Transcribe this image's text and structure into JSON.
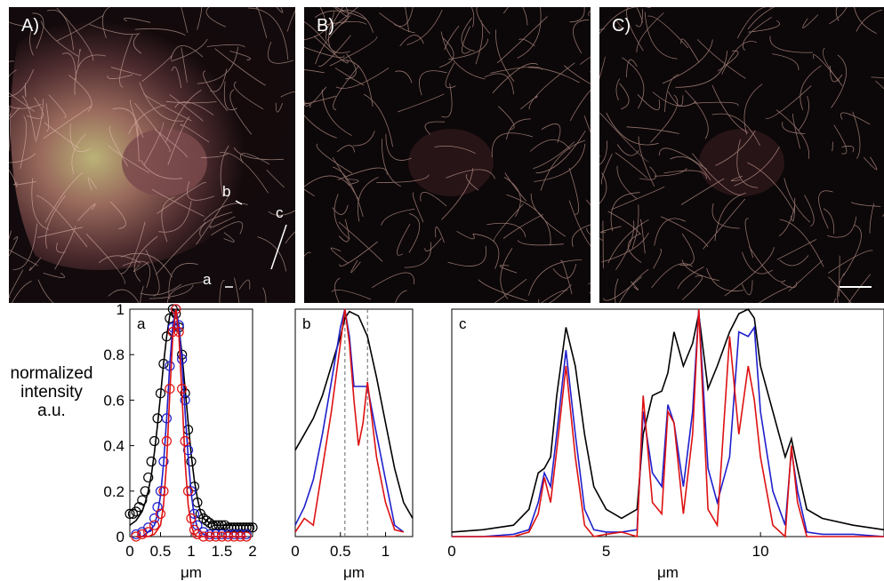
{
  "panels": [
    {
      "label": "A)"
    },
    {
      "label": "B)"
    },
    {
      "label": "C)"
    }
  ],
  "image_markers": [
    "a",
    "b",
    "c"
  ],
  "y_axis_label": [
    "normalized",
    "intensity",
    "a.u."
  ],
  "colors": {
    "black": "#000000",
    "blue": "#1f1fcc",
    "red": "#dd1111",
    "microtubule": "#e8b8ad"
  },
  "chart_data": [
    {
      "type": "scatter",
      "panel_label": "a",
      "xlabel": "μm",
      "xlim": [
        0,
        2
      ],
      "ylim": [
        0,
        1
      ],
      "xticks": [
        "0",
        "0.5",
        "1",
        "1.5",
        "2"
      ],
      "yticks": [
        "0",
        "0.2",
        "0.4",
        "0.6",
        "0.8",
        "1"
      ],
      "series": [
        {
          "color": "black",
          "x": [
            0,
            0.05,
            0.1,
            0.15,
            0.2,
            0.25,
            0.3,
            0.35,
            0.4,
            0.45,
            0.5,
            0.55,
            0.6,
            0.65,
            0.7,
            0.75,
            0.8,
            0.85,
            0.9,
            0.95,
            1.0,
            1.05,
            1.1,
            1.15,
            1.2,
            1.25,
            1.3,
            1.35,
            1.4,
            1.45,
            1.5,
            1.55,
            1.6,
            1.65,
            1.7,
            1.75,
            1.8,
            1.85,
            1.9,
            1.95,
            2.0
          ],
          "y": [
            0.1,
            0.1,
            0.11,
            0.13,
            0.16,
            0.2,
            0.26,
            0.33,
            0.42,
            0.52,
            0.63,
            0.76,
            0.88,
            0.96,
            1.0,
            0.98,
            0.92,
            0.8,
            0.63,
            0.47,
            0.33,
            0.22,
            0.15,
            0.1,
            0.08,
            0.07,
            0.06,
            0.05,
            0.05,
            0.05,
            0.05,
            0.05,
            0.04,
            0.04,
            0.04,
            0.04,
            0.04,
            0.04,
            0.04,
            0.04,
            0.04
          ],
          "fit": [
            0.05,
            0.06,
            0.07,
            0.09,
            0.11,
            0.15,
            0.2,
            0.27,
            0.37,
            0.49,
            0.62,
            0.76,
            0.88,
            0.97,
            1.0,
            0.98,
            0.92,
            0.8,
            0.65,
            0.5,
            0.36,
            0.25,
            0.17,
            0.11,
            0.08,
            0.07,
            0.06,
            0.06,
            0.05,
            0.05,
            0.05,
            0.05,
            0.05,
            0.05,
            0.05,
            0.05,
            0.05,
            0.05,
            0.05,
            0.05,
            0.05
          ]
        },
        {
          "color": "blue",
          "x": [
            0.1,
            0.2,
            0.3,
            0.4,
            0.45,
            0.5,
            0.55,
            0.6,
            0.65,
            0.7,
            0.75,
            0.8,
            0.85,
            0.9,
            0.95,
            1.0,
            1.05,
            1.1,
            1.2,
            1.3,
            1.4,
            1.5,
            1.6,
            1.7,
            1.8,
            1.9
          ],
          "y": [
            0.01,
            0.02,
            0.04,
            0.08,
            0.13,
            0.2,
            0.33,
            0.52,
            0.75,
            0.92,
            1.0,
            0.93,
            0.78,
            0.6,
            0.38,
            0.2,
            0.1,
            0.05,
            0.02,
            0.01,
            0.01,
            0.01,
            0.01,
            0.01,
            0.01,
            0.01
          ],
          "fit": [
            0.0,
            0.0,
            0.02,
            0.05,
            0.1,
            0.18,
            0.32,
            0.52,
            0.75,
            0.93,
            1.0,
            0.93,
            0.76,
            0.55,
            0.35,
            0.19,
            0.09,
            0.04,
            0.01,
            0.0,
            0.0,
            0.0,
            0.0,
            0.0,
            0.0,
            0.0
          ]
        },
        {
          "color": "red",
          "x": [
            0.1,
            0.2,
            0.3,
            0.4,
            0.5,
            0.55,
            0.6,
            0.65,
            0.7,
            0.75,
            0.8,
            0.85,
            0.9,
            0.95,
            1.0,
            1.05,
            1.1,
            1.2,
            1.3,
            1.4,
            1.5,
            1.6,
            1.7,
            1.8,
            1.9
          ],
          "y": [
            0.0,
            0.01,
            0.02,
            0.05,
            0.1,
            0.2,
            0.42,
            0.65,
            0.9,
            1.0,
            0.9,
            0.65,
            0.42,
            0.2,
            0.08,
            0.03,
            0.01,
            0.0,
            0.0,
            0.0,
            0.0,
            0.0,
            0.0,
            0.0,
            0.0
          ],
          "fit": [
            0.0,
            0.0,
            0.0,
            0.01,
            0.05,
            0.14,
            0.33,
            0.62,
            0.88,
            1.0,
            0.88,
            0.62,
            0.33,
            0.14,
            0.05,
            0.01,
            0.0,
            0.0,
            0.0,
            0.0,
            0.0,
            0.0,
            0.0,
            0.0,
            0.0
          ]
        }
      ]
    },
    {
      "type": "line",
      "panel_label": "b",
      "xlabel": "μm",
      "xlim": [
        0,
        1.3
      ],
      "ylim": [
        0,
        1
      ],
      "xticks": [
        "0",
        "0.5",
        "1"
      ],
      "vlines": [
        0.55,
        0.8
      ],
      "series": [
        {
          "color": "black",
          "x": [
            0,
            0.1,
            0.2,
            0.3,
            0.4,
            0.5,
            0.55,
            0.6,
            0.7,
            0.8,
            0.9,
            1.0,
            1.1,
            1.2,
            1.3
          ],
          "y": [
            0.38,
            0.45,
            0.52,
            0.62,
            0.75,
            0.88,
            0.96,
            0.99,
            0.97,
            0.88,
            0.7,
            0.5,
            0.3,
            0.15,
            0.08
          ]
        },
        {
          "color": "blue",
          "x": [
            0,
            0.1,
            0.2,
            0.3,
            0.4,
            0.5,
            0.55,
            0.6,
            0.65,
            0.7,
            0.75,
            0.8,
            0.9,
            1.0,
            1.1,
            1.2
          ],
          "y": [
            0.05,
            0.13,
            0.25,
            0.45,
            0.68,
            0.92,
            1.0,
            0.88,
            0.66,
            0.66,
            0.66,
            0.66,
            0.45,
            0.25,
            0.05,
            0.02
          ]
        },
        {
          "color": "red",
          "x": [
            0,
            0.1,
            0.2,
            0.3,
            0.4,
            0.5,
            0.55,
            0.6,
            0.65,
            0.7,
            0.75,
            0.8,
            0.9,
            1.0,
            1.1,
            1.2
          ],
          "y": [
            0.02,
            0.08,
            0.05,
            0.3,
            0.55,
            0.85,
            1.0,
            0.85,
            0.6,
            0.4,
            0.5,
            0.68,
            0.35,
            0.15,
            0.03,
            0.02
          ]
        }
      ]
    },
    {
      "type": "line",
      "panel_label": "c",
      "xlabel": "μm",
      "xlim": [
        0,
        14
      ],
      "ylim": [
        0,
        1
      ],
      "xticks": [
        "0",
        "5",
        "10"
      ],
      "series": [
        {
          "color": "black",
          "x": [
            0,
            1,
            2,
            2.5,
            2.8,
            3.0,
            3.2,
            3.4,
            3.7,
            4.0,
            4.3,
            4.6,
            5.0,
            5.5,
            6.0,
            6.2,
            6.5,
            6.8,
            7.0,
            7.2,
            7.5,
            7.8,
            8.0,
            8.3,
            8.6,
            9.0,
            9.3,
            9.6,
            9.8,
            10.0,
            10.4,
            10.8,
            11.0,
            11.2,
            11.5,
            12,
            13,
            14
          ],
          "y": [
            0.02,
            0.03,
            0.05,
            0.12,
            0.28,
            0.3,
            0.35,
            0.62,
            0.92,
            0.75,
            0.45,
            0.22,
            0.12,
            0.08,
            0.12,
            0.45,
            0.62,
            0.64,
            0.72,
            0.9,
            0.75,
            0.85,
            0.98,
            0.65,
            0.75,
            0.9,
            0.98,
            1.0,
            0.96,
            0.75,
            0.55,
            0.35,
            0.43,
            0.3,
            0.12,
            0.08,
            0.05,
            0.03
          ]
        },
        {
          "color": "blue",
          "x": [
            0,
            1,
            2,
            2.5,
            2.8,
            3.0,
            3.2,
            3.4,
            3.7,
            4.0,
            4.3,
            4.6,
            5.0,
            5.5,
            6.0,
            6.2,
            6.5,
            6.8,
            7.0,
            7.2,
            7.5,
            7.8,
            8.0,
            8.3,
            8.6,
            9.0,
            9.3,
            9.6,
            9.8,
            10.0,
            10.4,
            10.8,
            11.0,
            11.2,
            11.5,
            12,
            13,
            14
          ],
          "y": [
            0.0,
            0.0,
            0.01,
            0.03,
            0.15,
            0.28,
            0.22,
            0.45,
            0.82,
            0.45,
            0.12,
            0.03,
            0.02,
            0.02,
            0.03,
            0.55,
            0.28,
            0.22,
            0.58,
            0.5,
            0.22,
            0.55,
            1.0,
            0.3,
            0.15,
            0.35,
            0.9,
            0.88,
            0.92,
            0.55,
            0.2,
            0.05,
            0.38,
            0.2,
            0.02,
            0.01,
            0.01,
            0.0
          ]
        },
        {
          "color": "red",
          "x": [
            0,
            1,
            2,
            2.5,
            2.8,
            3.0,
            3.2,
            3.4,
            3.7,
            4.0,
            4.3,
            4.6,
            5.0,
            5.5,
            6.0,
            6.2,
            6.5,
            6.8,
            7.0,
            7.2,
            7.5,
            7.8,
            8.0,
            8.3,
            8.6,
            9.0,
            9.3,
            9.6,
            9.8,
            10.0,
            10.4,
            10.8,
            11.0,
            11.2,
            11.5,
            12,
            13,
            14
          ],
          "y": [
            0.0,
            0.0,
            0.0,
            0.02,
            0.1,
            0.26,
            0.15,
            0.38,
            0.75,
            0.35,
            0.05,
            0.0,
            0.01,
            0.02,
            0.0,
            0.62,
            0.15,
            0.1,
            0.55,
            0.5,
            0.1,
            0.45,
            1.0,
            0.12,
            0.05,
            0.88,
            0.45,
            0.75,
            0.6,
            0.35,
            0.05,
            0.0,
            0.4,
            0.15,
            0.0,
            0.0,
            0.0,
            0.0
          ]
        }
      ]
    }
  ]
}
